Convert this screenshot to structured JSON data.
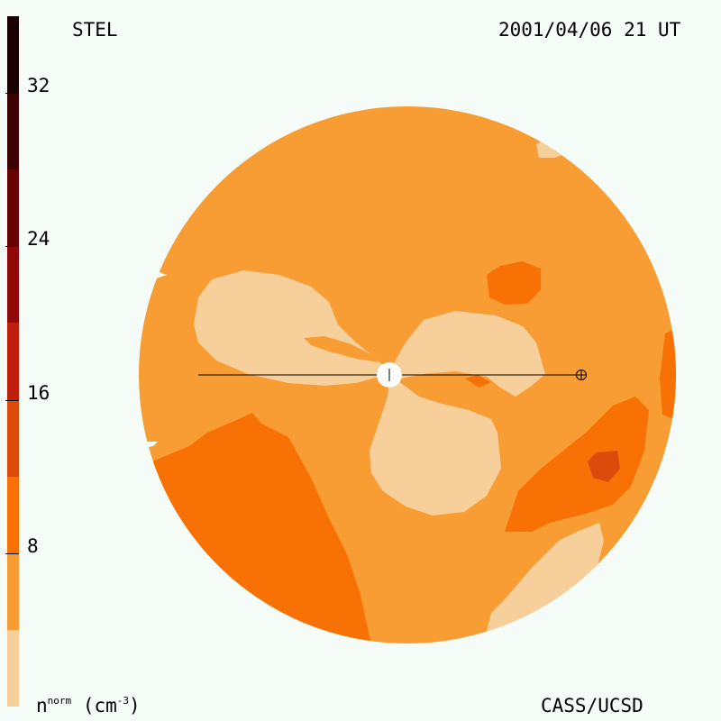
{
  "header": {
    "source": "STEL",
    "timestamp": "2001/04/06 21 UT"
  },
  "footer": {
    "credit": "CASS/UCSD",
    "quantity_symbol": "n",
    "quantity_superscript": "norm",
    "quantity_unit": "(cm",
    "unit_exponent": "-3",
    "unit_close": ")"
  },
  "colorbar": {
    "min": 0,
    "max": 36,
    "tick_labels": [
      "8",
      "16",
      "24",
      "32"
    ],
    "tick_values": [
      8,
      16,
      24,
      32
    ],
    "bands": [
      {
        "from": 0,
        "to": 4,
        "color": "#f7cf9b"
      },
      {
        "from": 4,
        "to": 8,
        "color": "#f79d34"
      },
      {
        "from": 8,
        "to": 12,
        "color": "#f77104"
      },
      {
        "from": 12,
        "to": 16,
        "color": "#dc4b0c"
      },
      {
        "from": 16,
        "to": 20,
        "color": "#c01e0c"
      },
      {
        "from": 20,
        "to": 24,
        "color": "#910808"
      },
      {
        "from": 24,
        "to": 28,
        "color": "#660404"
      },
      {
        "from": 28,
        "to": 32,
        "color": "#3d0303"
      },
      {
        "from": 32,
        "to": 36,
        "color": "#1a0101"
      }
    ]
  },
  "colors": {
    "level_0_4": "#f7cf9b",
    "level_4_8": "#f79d34",
    "level_8_12": "#f77104",
    "level_12_16": "#dc4b0c",
    "background": "#f5fbf6"
  },
  "symbols": {
    "sun": "sun-disc",
    "earth": "earth-circled-cross"
  }
}
